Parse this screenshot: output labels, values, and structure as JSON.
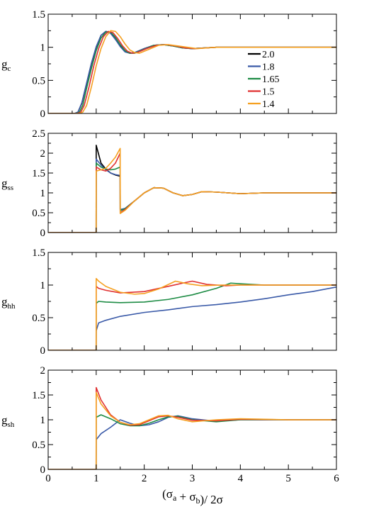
{
  "chart_data": [
    {
      "type": "line",
      "ylabel": "g",
      "ylabel_sub": "c",
      "ylim": [
        0,
        1.5
      ],
      "yticks": [
        "0",
        "0.5",
        "1",
        "1.5"
      ],
      "xlim": [
        0,
        6
      ],
      "legend_position": "right",
      "series": [
        {
          "name": "2.0",
          "color": "#000000",
          "x": [
            0,
            0.55,
            0.62,
            0.7,
            0.8,
            0.9,
            1.0,
            1.1,
            1.2,
            1.3,
            1.4,
            1.5,
            1.6,
            1.7,
            1.8,
            1.9,
            2.0,
            2.2,
            2.4,
            2.6,
            2.8,
            3.0,
            3.5,
            4.0,
            4.5,
            5.0,
            5.5,
            6.0
          ],
          "y": [
            0,
            0,
            0.02,
            0.15,
            0.45,
            0.75,
            1.0,
            1.18,
            1.24,
            1.22,
            1.12,
            1.02,
            0.94,
            0.91,
            0.92,
            0.95,
            0.98,
            1.03,
            1.04,
            1.02,
            0.99,
            0.98,
            1.0,
            1.0,
            1.0,
            1.0,
            1.0,
            1.0
          ]
        },
        {
          "name": "1.8",
          "color": "#3a5aa8",
          "x": [
            0,
            0.55,
            0.62,
            0.7,
            0.8,
            0.9,
            1.0,
            1.1,
            1.2,
            1.3,
            1.4,
            1.5,
            1.6,
            1.7,
            1.8,
            1.9,
            2.0,
            2.2,
            2.4,
            2.6,
            2.8,
            3.0,
            3.5,
            4.0,
            4.5,
            5.0,
            5.5,
            6.0
          ],
          "y": [
            0,
            0,
            0.02,
            0.16,
            0.46,
            0.76,
            1.01,
            1.18,
            1.24,
            1.21,
            1.12,
            1.01,
            0.93,
            0.91,
            0.92,
            0.95,
            0.98,
            1.03,
            1.04,
            1.02,
            0.99,
            0.98,
            1.0,
            1.0,
            1.0,
            1.0,
            1.0,
            1.0
          ]
        },
        {
          "name": "1.65",
          "color": "#1e8c45",
          "x": [
            0,
            0.58,
            0.65,
            0.72,
            0.8,
            0.9,
            1.0,
            1.1,
            1.2,
            1.3,
            1.4,
            1.5,
            1.6,
            1.7,
            1.8,
            1.9,
            2.0,
            2.2,
            2.4,
            2.6,
            2.8,
            3.0,
            3.5,
            4.0,
            4.5,
            5.0,
            5.5,
            6.0
          ],
          "y": [
            0,
            0,
            0.02,
            0.12,
            0.38,
            0.68,
            0.95,
            1.14,
            1.23,
            1.23,
            1.15,
            1.04,
            0.95,
            0.91,
            0.91,
            0.94,
            0.97,
            1.03,
            1.04,
            1.02,
            0.99,
            0.98,
            1.0,
            1.0,
            1.0,
            1.0,
            1.0,
            1.0
          ]
        },
        {
          "name": "1.5",
          "color": "#e03030",
          "x": [
            0,
            0.6,
            0.68,
            0.75,
            0.85,
            0.95,
            1.05,
            1.15,
            1.25,
            1.35,
            1.45,
            1.55,
            1.65,
            1.75,
            1.85,
            1.95,
            2.05,
            2.25,
            2.45,
            2.65,
            2.85,
            3.05,
            3.5,
            4.0,
            4.5,
            5.0,
            5.5,
            6.0
          ],
          "y": [
            0,
            0,
            0.02,
            0.12,
            0.4,
            0.72,
            0.98,
            1.16,
            1.24,
            1.22,
            1.13,
            1.02,
            0.94,
            0.91,
            0.92,
            0.95,
            0.98,
            1.03,
            1.04,
            1.02,
            0.99,
            0.98,
            1.0,
            1.0,
            1.0,
            1.0,
            1.0,
            1.0
          ]
        },
        {
          "name": "1.4",
          "color": "#f5a020",
          "x": [
            0,
            0.65,
            0.72,
            0.8,
            0.9,
            1.0,
            1.1,
            1.2,
            1.3,
            1.4,
            1.5,
            1.6,
            1.7,
            1.8,
            1.9,
            2.0,
            2.1,
            2.3,
            2.5,
            2.7,
            2.9,
            3.1,
            3.5,
            4.0,
            4.5,
            5.0,
            5.5,
            6.0
          ],
          "y": [
            0,
            0,
            0.02,
            0.12,
            0.4,
            0.72,
            0.98,
            1.16,
            1.25,
            1.24,
            1.16,
            1.05,
            0.96,
            0.92,
            0.91,
            0.94,
            0.97,
            1.03,
            1.04,
            1.02,
            1.0,
            0.98,
            1.0,
            1.0,
            1.0,
            1.0,
            1.0,
            1.0
          ]
        }
      ]
    },
    {
      "type": "line",
      "ylabel": "g",
      "ylabel_sub": "ss",
      "ylim": [
        0,
        2.5
      ],
      "yticks": [
        "0",
        "0.5",
        "1",
        "1.5",
        "2",
        "2.5"
      ],
      "xlim": [
        0,
        6
      ],
      "series": [
        {
          "name": "2.0",
          "color": "#000000",
          "x": [
            0,
            0.999,
            1.0,
            1.1,
            1.2,
            1.3,
            1.4,
            1.499,
            1.5,
            1.6,
            1.8,
            2.0,
            2.2,
            2.4,
            2.6,
            2.8,
            3.0,
            3.2,
            3.5,
            4.0,
            4.5,
            5.0,
            5.5,
            6.0
          ],
          "y": [
            0,
            0,
            2.2,
            1.75,
            1.6,
            1.5,
            1.45,
            1.42,
            0.58,
            0.6,
            0.8,
            1.0,
            1.13,
            1.12,
            1.0,
            0.93,
            0.96,
            1.03,
            1.02,
            0.98,
            1.0,
            1.0,
            1.0,
            1.0
          ]
        },
        {
          "name": "1.8",
          "color": "#3a5aa8",
          "x": [
            0,
            0.999,
            1.0,
            1.1,
            1.2,
            1.3,
            1.4,
            1.499,
            1.5,
            1.6,
            1.8,
            2.0,
            2.2,
            2.4,
            2.6,
            2.8,
            3.0,
            3.2,
            3.5,
            4.0,
            4.5,
            5.0,
            5.5,
            6.0
          ],
          "y": [
            0,
            0,
            1.85,
            1.7,
            1.58,
            1.5,
            1.46,
            1.44,
            0.58,
            0.61,
            0.8,
            1.0,
            1.13,
            1.12,
            1.0,
            0.93,
            0.96,
            1.03,
            1.02,
            0.98,
            1.0,
            1.0,
            1.0,
            1.0
          ]
        },
        {
          "name": "1.65",
          "color": "#1e8c45",
          "x": [
            0,
            0.999,
            1.0,
            1.1,
            1.2,
            1.3,
            1.4,
            1.499,
            1.5,
            1.6,
            1.8,
            2.0,
            2.2,
            2.4,
            2.6,
            2.8,
            3.0,
            3.2,
            3.5,
            4.0,
            4.5,
            5.0,
            5.5,
            6.0
          ],
          "y": [
            0,
            0,
            1.75,
            1.65,
            1.6,
            1.58,
            1.6,
            1.65,
            0.55,
            0.6,
            0.8,
            1.0,
            1.13,
            1.12,
            1.0,
            0.93,
            0.96,
            1.03,
            1.02,
            0.98,
            1.0,
            1.0,
            1.0,
            1.0
          ]
        },
        {
          "name": "1.5",
          "color": "#e03030",
          "x": [
            0,
            0.999,
            1.0,
            1.1,
            1.2,
            1.3,
            1.4,
            1.499,
            1.5,
            1.6,
            1.8,
            2.0,
            2.2,
            2.4,
            2.6,
            2.8,
            3.0,
            3.2,
            3.5,
            4.0,
            4.5,
            5.0,
            5.5,
            6.0
          ],
          "y": [
            0,
            0,
            1.65,
            1.58,
            1.55,
            1.62,
            1.75,
            2.0,
            0.5,
            0.58,
            0.8,
            1.0,
            1.13,
            1.12,
            1.0,
            0.93,
            0.96,
            1.03,
            1.02,
            0.98,
            1.0,
            1.0,
            1.0,
            1.0
          ]
        },
        {
          "name": "1.4",
          "color": "#f5a020",
          "x": [
            0,
            0.999,
            1.0,
            1.1,
            1.2,
            1.3,
            1.4,
            1.499,
            1.5,
            1.6,
            1.8,
            2.0,
            2.2,
            2.4,
            2.6,
            2.8,
            3.0,
            3.2,
            3.5,
            4.0,
            4.5,
            5.0,
            5.5,
            6.0
          ],
          "y": [
            0,
            0,
            1.55,
            1.58,
            1.62,
            1.75,
            1.9,
            2.12,
            0.48,
            0.56,
            0.8,
            1.0,
            1.13,
            1.12,
            1.0,
            0.93,
            0.96,
            1.03,
            1.02,
            0.98,
            1.0,
            1.0,
            1.0,
            1.0
          ]
        }
      ]
    },
    {
      "type": "line",
      "ylabel": "g",
      "ylabel_sub": "hh",
      "ylim": [
        0,
        1.5
      ],
      "yticks": [
        "0",
        "0.5",
        "1",
        "1.5"
      ],
      "xlim": [
        0,
        6
      ],
      "series": [
        {
          "name": "1.8",
          "color": "#3a5aa8",
          "x": [
            0,
            0.999,
            1.0,
            1.05,
            1.2,
            1.5,
            2.0,
            2.5,
            3.0,
            3.5,
            4.0,
            4.5,
            5.0,
            5.5,
            6.0
          ],
          "y": [
            0,
            0,
            0.3,
            0.42,
            0.46,
            0.52,
            0.58,
            0.62,
            0.67,
            0.7,
            0.74,
            0.79,
            0.85,
            0.9,
            0.97
          ]
        },
        {
          "name": "1.65",
          "color": "#1e8c45",
          "x": [
            0,
            0.999,
            1.0,
            1.05,
            1.2,
            1.5,
            2.0,
            2.5,
            3.0,
            3.5,
            3.8,
            4.0,
            4.5,
            5.0,
            5.5,
            6.0
          ],
          "y": [
            0,
            0,
            0.72,
            0.75,
            0.74,
            0.73,
            0.74,
            0.78,
            0.85,
            0.95,
            1.03,
            1.02,
            1.0,
            1.0,
            1.0,
            1.0
          ]
        },
        {
          "name": "1.5",
          "color": "#e03030",
          "x": [
            0,
            0.999,
            1.0,
            1.05,
            1.2,
            1.5,
            2.0,
            2.5,
            2.8,
            3.0,
            3.3,
            3.7,
            4.0,
            4.5,
            5.0,
            5.5,
            6.0
          ],
          "y": [
            0,
            0,
            0.98,
            0.95,
            0.92,
            0.88,
            0.9,
            0.98,
            1.03,
            1.06,
            1.01,
            0.99,
            1.0,
            1.0,
            1.0,
            1.0,
            1.0
          ]
        },
        {
          "name": "1.4",
          "color": "#f5a020",
          "x": [
            0,
            0.999,
            1.0,
            1.05,
            1.2,
            1.5,
            1.8,
            2.0,
            2.3,
            2.65,
            2.9,
            3.2,
            3.6,
            4.0,
            4.5,
            5.0,
            5.5,
            6.0
          ],
          "y": [
            0,
            0,
            1.1,
            1.06,
            0.98,
            0.89,
            0.86,
            0.87,
            0.94,
            1.06,
            1.02,
            0.99,
            1.0,
            1.0,
            1.0,
            1.0,
            1.0,
            1.0
          ]
        }
      ]
    },
    {
      "type": "line",
      "ylabel": "g",
      "ylabel_sub": "sh",
      "ylim": [
        0,
        2
      ],
      "yticks": [
        "0",
        "0.5",
        "1",
        "1.5",
        "2"
      ],
      "xlim": [
        0,
        6
      ],
      "xticks": [
        "0",
        "1",
        "2",
        "3",
        "4",
        "5",
        "6"
      ],
      "xlabel": "(σ_a + σ_b)/ 2σ",
      "series": [
        {
          "name": "1.8",
          "color": "#3a5aa8",
          "x": [
            0,
            0.999,
            1.0,
            1.1,
            1.3,
            1.5,
            1.7,
            1.9,
            2.1,
            2.3,
            2.5,
            2.7,
            3.0,
            3.5,
            4.0,
            5.0,
            6.0
          ],
          "y": [
            0,
            0,
            0.6,
            0.72,
            0.85,
            1.0,
            0.93,
            0.88,
            0.9,
            0.96,
            1.05,
            1.08,
            1.02,
            0.97,
            1.0,
            1.0,
            1.0
          ]
        },
        {
          "name": "1.65",
          "color": "#1e8c45",
          "x": [
            0,
            0.999,
            1.0,
            1.1,
            1.3,
            1.5,
            1.7,
            1.9,
            2.1,
            2.3,
            2.5,
            2.7,
            3.0,
            3.5,
            4.0,
            5.0,
            6.0
          ],
          "y": [
            0,
            0,
            1.05,
            1.1,
            1.02,
            0.92,
            0.88,
            0.88,
            0.93,
            1.0,
            1.06,
            1.07,
            1.0,
            0.96,
            1.0,
            1.0,
            1.0
          ]
        },
        {
          "name": "1.5",
          "color": "#e03030",
          "x": [
            0,
            0.999,
            1.0,
            1.1,
            1.3,
            1.5,
            1.7,
            1.9,
            2.1,
            2.3,
            2.5,
            2.7,
            3.0,
            3.5,
            4.0,
            5.0,
            6.0
          ],
          "y": [
            0,
            0,
            1.65,
            1.4,
            1.1,
            0.95,
            0.89,
            0.9,
            0.98,
            1.06,
            1.08,
            1.05,
            0.99,
            0.98,
            1.01,
            1.0,
            1.0
          ]
        },
        {
          "name": "1.4",
          "color": "#f5a020",
          "x": [
            0,
            0.999,
            1.0,
            1.1,
            1.3,
            1.5,
            1.7,
            1.9,
            2.1,
            2.3,
            2.5,
            2.7,
            3.0,
            3.5,
            4.0,
            5.0,
            6.0
          ],
          "y": [
            0,
            0,
            1.55,
            1.32,
            1.08,
            0.95,
            0.9,
            0.92,
            1.0,
            1.08,
            1.09,
            1.02,
            0.96,
            1.0,
            1.02,
            1.0,
            1.0
          ]
        }
      ]
    }
  ]
}
